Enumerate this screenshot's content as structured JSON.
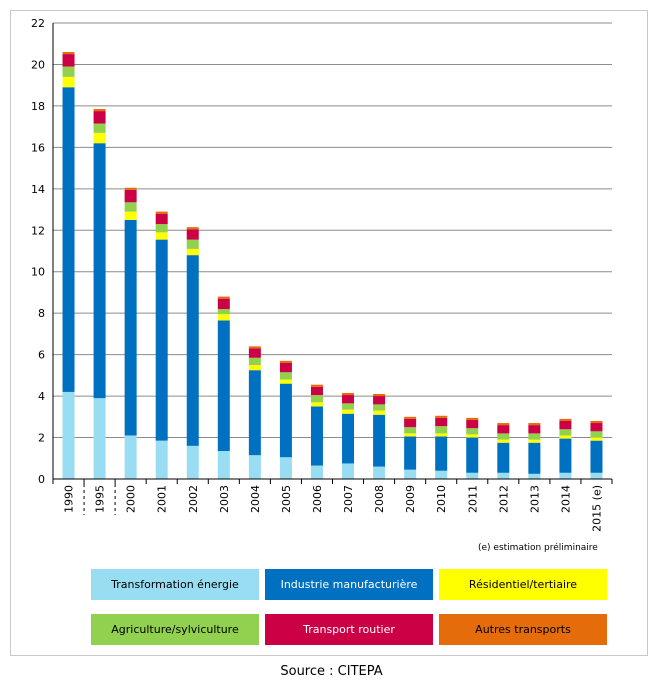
{
  "chart_data": {
    "type": "bar",
    "stacked": true,
    "categories": [
      "1990",
      "1995",
      "2000",
      "2001",
      "2002",
      "2003",
      "2004",
      "2005",
      "2006",
      "2007",
      "2008",
      "2009",
      "2010",
      "2011",
      "2012",
      "2013",
      "2014",
      "2015 (e)"
    ],
    "ylim": [
      0,
      22
    ],
    "yticks": [
      0,
      2,
      4,
      6,
      8,
      10,
      12,
      14,
      16,
      18,
      20,
      22
    ],
    "grid": true,
    "series": [
      {
        "name": "Transformation énergie",
        "color": "#99ddf2",
        "values": [
          4.2,
          3.9,
          2.1,
          1.85,
          1.6,
          1.35,
          1.15,
          1.05,
          0.65,
          0.75,
          0.6,
          0.45,
          0.4,
          0.3,
          0.3,
          0.25,
          0.3,
          0.3
        ]
      },
      {
        "name": "Industrie manufacturière",
        "color": "#0070c0",
        "values": [
          14.7,
          12.3,
          10.4,
          9.7,
          9.2,
          6.3,
          4.1,
          3.55,
          2.85,
          2.4,
          2.5,
          1.6,
          1.65,
          1.7,
          1.45,
          1.5,
          1.65,
          1.55
        ]
      },
      {
        "name": "Résidentiel/tertiaire",
        "color": "#ffff00",
        "values": [
          0.5,
          0.5,
          0.4,
          0.35,
          0.3,
          0.3,
          0.25,
          0.2,
          0.2,
          0.2,
          0.2,
          0.15,
          0.15,
          0.15,
          0.15,
          0.15,
          0.15,
          0.15
        ]
      },
      {
        "name": "Agriculture/sylviculture",
        "color": "#92d050",
        "values": [
          0.5,
          0.45,
          0.45,
          0.4,
          0.45,
          0.25,
          0.35,
          0.35,
          0.35,
          0.3,
          0.3,
          0.3,
          0.35,
          0.3,
          0.3,
          0.3,
          0.3,
          0.3
        ]
      },
      {
        "name": "Transport routier",
        "color": "#cc0044",
        "values": [
          0.6,
          0.6,
          0.6,
          0.5,
          0.5,
          0.5,
          0.45,
          0.45,
          0.4,
          0.4,
          0.4,
          0.4,
          0.4,
          0.4,
          0.4,
          0.4,
          0.4,
          0.4
        ]
      },
      {
        "name": "Autres transports",
        "color": "#e46c0a",
        "values": [
          0.1,
          0.1,
          0.1,
          0.1,
          0.1,
          0.1,
          0.1,
          0.1,
          0.1,
          0.1,
          0.1,
          0.1,
          0.1,
          0.1,
          0.1,
          0.1,
          0.1,
          0.1
        ]
      }
    ],
    "footnote": "(e) estimation préliminaire",
    "source": "Source : CITEPA",
    "legend_placement": "bottom"
  }
}
